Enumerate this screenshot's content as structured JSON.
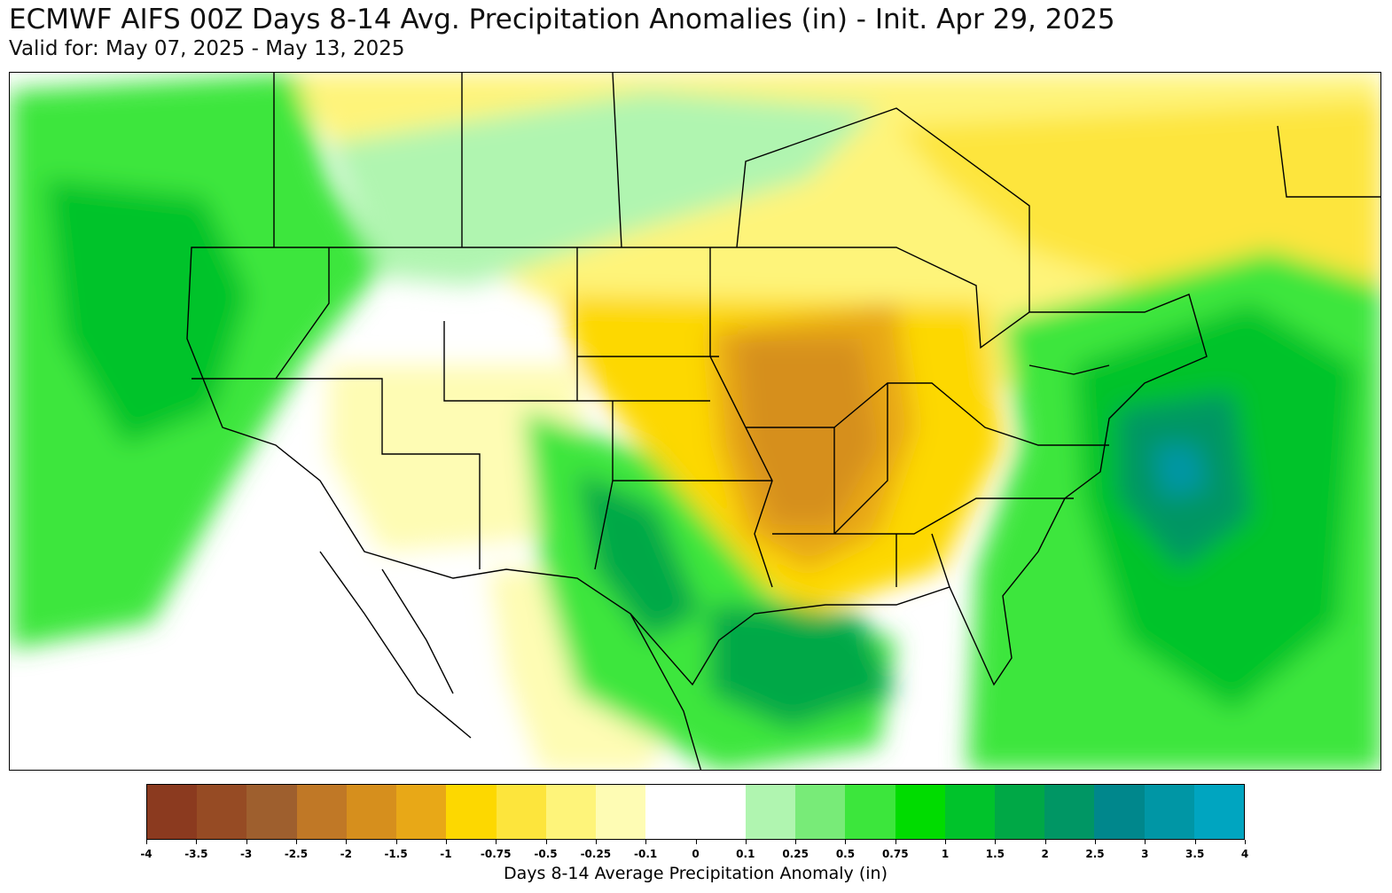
{
  "title": "ECMWF AIFS 00Z Days 8-14 Avg. Precipitation Anomalies (in) - Init. Apr 29, 2025",
  "subtitle": "Valid for: May 07, 2025 - May 13, 2025",
  "colorbar": {
    "label": "Days 8-14 Average Precipitation Anomaly (in)",
    "ticks": [
      "-4",
      "-3.5",
      "-3",
      "-2.5",
      "-2",
      "-1.5",
      "-1",
      "-0.75",
      "-0.5",
      "-0.25",
      "-0.1",
      "0",
      "0.1",
      "0.25",
      "0.5",
      "0.75",
      "1",
      "1.5",
      "2",
      "2.5",
      "3",
      "3.5",
      "4"
    ],
    "colors": [
      "#8b3a1f",
      "#964b24",
      "#9e5f2e",
      "#c07826",
      "#d68f1d",
      "#e8a817",
      "#fdd800",
      "#fde53c",
      "#fef47a",
      "#fefcb4",
      "#ffffff",
      "#ffffff",
      "#b0f5b0",
      "#78eb78",
      "#3ce63c",
      "#00dc00",
      "#00c32b",
      "#00a846",
      "#009664",
      "#00878c",
      "#0096a5",
      "#00a5c0"
    ]
  },
  "map_colors": {
    "dry_light": "#fefcb4",
    "dry_mid": "#fef47a",
    "dry_yellow": "#fde53c",
    "dry_gold": "#fdd800",
    "dry_orange": "#e8a817",
    "dry_dark": "#d68f1d",
    "wet_light": "#b0f5b0",
    "wet_mid": "#78eb78",
    "wet_green": "#3ce63c",
    "wet_strong": "#00c32b",
    "wet_deep": "#00a846",
    "wet_teal": "#009664",
    "wet_cyan": "#0096a5"
  }
}
